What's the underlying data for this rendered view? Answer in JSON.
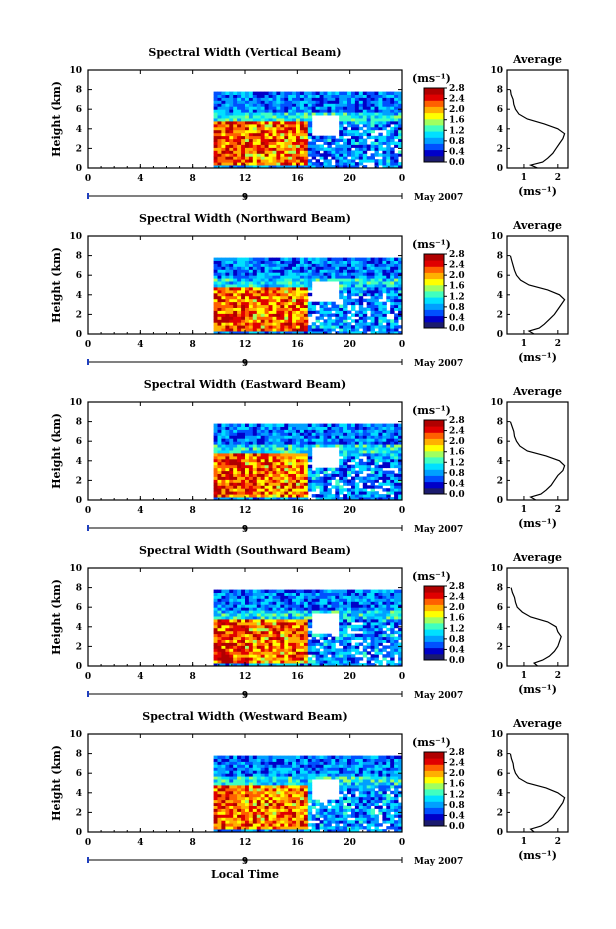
{
  "figure": {
    "x_label": "Local Time",
    "date_label": "May 2007",
    "date_tick": "9",
    "color_unit_label": "(ms⁻¹)",
    "avg_title": "Average",
    "avg_xlabel": "(ms⁻¹)",
    "height_label": "Height (km)"
  },
  "colors": {
    "scale": [
      "#1b1b6e",
      "#0000c8",
      "#0050ff",
      "#00a0ff",
      "#00e0ff",
      "#40ffc0",
      "#a0ff60",
      "#ffff00",
      "#ffb000",
      "#ff6000",
      "#e00000",
      "#b00000"
    ],
    "no_data": "#ffffff"
  },
  "chart_data": [
    {
      "type": "heatmap",
      "title": "Spectral Width (Vertical Beam)",
      "xlabel": "Local Time",
      "ylabel": "Height (km)",
      "x_ticks": [
        "0",
        "4",
        "8",
        "12",
        "16",
        "20",
        "0"
      ],
      "xlim": [
        0,
        24
      ],
      "y_ticks": [
        "0",
        "2",
        "4",
        "6",
        "8",
        "10"
      ],
      "ylim": [
        0,
        10
      ],
      "colorbar": {
        "label": "(ms⁻¹)",
        "ticks": [
          "0.0",
          "0.4",
          "0.8",
          "1.2",
          "1.6",
          "2.0",
          "2.4",
          "2.8"
        ],
        "range": [
          0,
          2.8
        ]
      },
      "data_extent": {
        "time_start": 9.6,
        "time_end": 24,
        "height_top": 7.8
      },
      "profile": {
        "title": "Average",
        "xlabel": "(ms⁻¹)",
        "x_ticks": [
          "1",
          "2"
        ],
        "xlim": [
          0.5,
          2.3
        ],
        "height": [
          0,
          0.3,
          0.6,
          1.0,
          1.5,
          2.0,
          2.5,
          3.0,
          3.5,
          4.0,
          4.5,
          5.0,
          5.5,
          6.0,
          6.5,
          7.0,
          7.5,
          8.0
        ],
        "value": [
          1.4,
          1.2,
          1.55,
          1.7,
          1.85,
          1.95,
          2.05,
          2.15,
          2.2,
          2.0,
          1.6,
          1.1,
          0.85,
          0.75,
          0.7,
          0.68,
          0.62,
          0.6
        ]
      }
    },
    {
      "type": "heatmap",
      "title": "Spectral Width (Northward Beam)",
      "xlabel": "Local Time",
      "ylabel": "Height (km)",
      "x_ticks": [
        "0",
        "4",
        "8",
        "12",
        "16",
        "20",
        "0"
      ],
      "xlim": [
        0,
        24
      ],
      "y_ticks": [
        "0",
        "2",
        "4",
        "6",
        "8",
        "10"
      ],
      "ylim": [
        0,
        10
      ],
      "colorbar": {
        "label": "(ms⁻¹)",
        "ticks": [
          "0.0",
          "0.4",
          "0.8",
          "1.2",
          "1.6",
          "2.0",
          "2.4",
          "2.8"
        ],
        "range": [
          0,
          2.8
        ]
      },
      "data_extent": {
        "time_start": 9.6,
        "time_end": 24,
        "height_top": 7.8
      },
      "profile": {
        "title": "Average",
        "xlabel": "(ms⁻¹)",
        "x_ticks": [
          "1",
          "2"
        ],
        "xlim": [
          0.5,
          2.3
        ],
        "height": [
          0,
          0.3,
          0.6,
          1.0,
          1.5,
          2.0,
          2.5,
          3.0,
          3.5,
          4.0,
          4.5,
          5.0,
          5.5,
          6.0,
          6.5,
          7.0,
          7.5,
          8.0
        ],
        "value": [
          1.3,
          1.15,
          1.45,
          1.6,
          1.75,
          1.9,
          2.0,
          2.1,
          2.2,
          2.05,
          1.7,
          1.15,
          0.9,
          0.78,
          0.72,
          0.68,
          0.64,
          0.6
        ]
      }
    },
    {
      "type": "heatmap",
      "title": "Spectral Width (Eastward Beam)",
      "xlabel": "Local Time",
      "ylabel": "Height (km)",
      "x_ticks": [
        "0",
        "4",
        "8",
        "12",
        "16",
        "20",
        "0"
      ],
      "xlim": [
        0,
        24
      ],
      "y_ticks": [
        "0",
        "2",
        "4",
        "6",
        "8",
        "10"
      ],
      "ylim": [
        0,
        10
      ],
      "colorbar": {
        "label": "(ms⁻¹)",
        "ticks": [
          "0.0",
          "0.4",
          "0.8",
          "1.2",
          "1.6",
          "2.0",
          "2.4",
          "2.8"
        ],
        "range": [
          0,
          2.8
        ]
      },
      "data_extent": {
        "time_start": 9.6,
        "time_end": 24,
        "height_top": 7.8
      },
      "profile": {
        "title": "Average",
        "xlabel": "(ms⁻¹)",
        "x_ticks": [
          "1",
          "2"
        ],
        "xlim": [
          0.5,
          2.3
        ],
        "height": [
          0,
          0.3,
          0.6,
          1.0,
          1.5,
          2.0,
          2.5,
          3.0,
          3.5,
          4.0,
          4.5,
          5.0,
          5.5,
          6.0,
          6.5,
          7.0,
          7.5,
          8.0
        ],
        "value": [
          1.35,
          1.2,
          1.5,
          1.65,
          1.8,
          1.9,
          2.0,
          2.15,
          2.2,
          2.05,
          1.65,
          1.1,
          0.88,
          0.78,
          0.72,
          0.7,
          0.65,
          0.6
        ]
      }
    },
    {
      "type": "heatmap",
      "title": "Spectral Width (Southward Beam)",
      "xlabel": "Local Time",
      "ylabel": "Height (km)",
      "x_ticks": [
        "0",
        "4",
        "8",
        "12",
        "16",
        "20",
        "0"
      ],
      "xlim": [
        0,
        24
      ],
      "y_ticks": [
        "0",
        "2",
        "4",
        "6",
        "8",
        "10"
      ],
      "ylim": [
        0,
        10
      ],
      "colorbar": {
        "label": "(ms⁻¹)",
        "ticks": [
          "0.0",
          "0.4",
          "0.8",
          "1.2",
          "1.6",
          "2.0",
          "2.4",
          "2.8"
        ],
        "range": [
          0,
          2.8
        ]
      },
      "data_extent": {
        "time_start": 9.6,
        "time_end": 24,
        "height_top": 7.8
      },
      "profile": {
        "title": "Average",
        "xlabel": "(ms⁻¹)",
        "x_ticks": [
          "1",
          "2"
        ],
        "xlim": [
          0.5,
          2.3
        ],
        "height": [
          0,
          0.3,
          0.6,
          1.0,
          1.5,
          2.0,
          2.5,
          3.0,
          3.5,
          4.0,
          4.5,
          5.0,
          5.5,
          6.0,
          6.5,
          7.0,
          7.5,
          8.0
        ],
        "value": [
          1.4,
          1.3,
          1.55,
          1.75,
          1.9,
          2.0,
          2.05,
          2.1,
          2.0,
          1.95,
          1.7,
          1.2,
          0.95,
          0.8,
          0.75,
          0.72,
          0.66,
          0.62
        ]
      }
    },
    {
      "type": "heatmap",
      "title": "Spectral Width (Westward Beam)",
      "xlabel": "Local Time",
      "ylabel": "Height (km)",
      "x_ticks": [
        "0",
        "4",
        "8",
        "12",
        "16",
        "20",
        "0"
      ],
      "xlim": [
        0,
        24
      ],
      "y_ticks": [
        "0",
        "2",
        "4",
        "6",
        "8",
        "10"
      ],
      "ylim": [
        0,
        10
      ],
      "colorbar": {
        "label": "(ms⁻¹)",
        "ticks": [
          "0.0",
          "0.4",
          "0.8",
          "1.2",
          "1.6",
          "2.0",
          "2.4",
          "2.8"
        ],
        "range": [
          0,
          2.8
        ]
      },
      "data_extent": {
        "time_start": 9.6,
        "time_end": 24,
        "height_top": 7.8
      },
      "profile": {
        "title": "Average",
        "xlabel": "(ms⁻¹)",
        "x_ticks": [
          "1",
          "2"
        ],
        "xlim": [
          0.5,
          2.3
        ],
        "height": [
          0,
          0.3,
          0.6,
          1.0,
          1.5,
          2.0,
          2.5,
          3.0,
          3.5,
          4.0,
          4.5,
          5.0,
          5.5,
          6.0,
          6.5,
          7.0,
          7.5,
          8.0
        ],
        "value": [
          1.3,
          1.2,
          1.5,
          1.7,
          1.85,
          1.95,
          2.05,
          2.15,
          2.2,
          2.0,
          1.65,
          1.1,
          0.85,
          0.75,
          0.7,
          0.68,
          0.63,
          0.6
        ]
      }
    }
  ]
}
